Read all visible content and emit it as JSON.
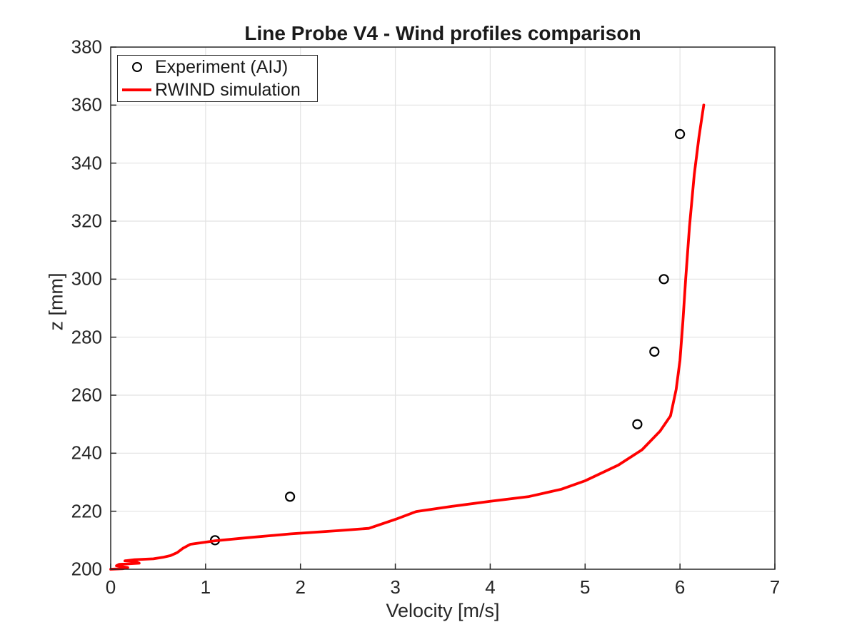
{
  "figure": {
    "background": "#ffffff",
    "text_color": "#262626",
    "grid_color": "#e2e2e2"
  },
  "chart_data": {
    "type": "line",
    "title": "Line Probe V4 - Wind profiles comparison",
    "xlabel": "Velocity [m/s]",
    "ylabel": "z [mm]",
    "xlim": [
      0,
      7
    ],
    "ylim": [
      200,
      380
    ],
    "xticks": [
      0,
      1,
      2,
      3,
      4,
      5,
      6,
      7
    ],
    "yticks": [
      200,
      220,
      240,
      260,
      280,
      300,
      320,
      340,
      360,
      380
    ],
    "grid": true,
    "legend_position": "top-left",
    "series": [
      {
        "name": "Experiment (AIJ)",
        "type": "scatter",
        "marker": "open-circle",
        "color": "#000000",
        "points": [
          [
            1.1,
            210
          ],
          [
            1.89,
            225
          ],
          [
            5.55,
            250
          ],
          [
            5.73,
            275
          ],
          [
            5.83,
            300
          ],
          [
            6.0,
            350
          ]
        ]
      },
      {
        "name": "RWIND simulation",
        "type": "line",
        "color": "#ff0000",
        "line_width": 3.8,
        "points": [
          [
            0.0,
            200.0
          ],
          [
            0.13,
            200.2
          ],
          [
            0.18,
            200.6
          ],
          [
            0.06,
            201.2
          ],
          [
            0.09,
            201.7
          ],
          [
            0.3,
            202.1
          ],
          [
            0.27,
            202.5
          ],
          [
            0.15,
            202.9
          ],
          [
            0.25,
            203.3
          ],
          [
            0.45,
            203.6
          ],
          [
            0.55,
            204.1
          ],
          [
            0.63,
            204.7
          ],
          [
            0.7,
            205.7
          ],
          [
            0.76,
            207.2
          ],
          [
            0.84,
            208.6
          ],
          [
            1.1,
            209.8
          ],
          [
            1.45,
            210.9
          ],
          [
            1.9,
            212.2
          ],
          [
            2.4,
            213.3
          ],
          [
            2.72,
            214.1
          ],
          [
            3.0,
            217.2
          ],
          [
            3.22,
            219.9
          ],
          [
            3.6,
            221.7
          ],
          [
            4.0,
            223.4
          ],
          [
            4.4,
            225.0
          ],
          [
            4.75,
            227.6
          ],
          [
            5.0,
            230.5
          ],
          [
            5.35,
            235.9
          ],
          [
            5.6,
            241.2
          ],
          [
            5.79,
            247.6
          ],
          [
            5.9,
            252.9
          ],
          [
            5.96,
            262.0
          ],
          [
            6.0,
            272.0
          ],
          [
            6.03,
            285.0
          ],
          [
            6.06,
            300.0
          ],
          [
            6.1,
            318.0
          ],
          [
            6.15,
            336.0
          ],
          [
            6.2,
            349.0
          ],
          [
            6.25,
            360.0
          ]
        ]
      }
    ]
  }
}
